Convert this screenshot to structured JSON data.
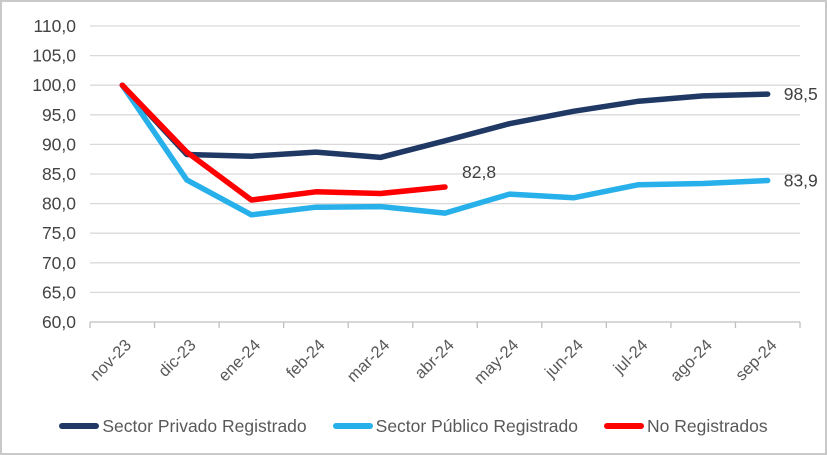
{
  "chart_data": {
    "type": "line",
    "title": "",
    "xlabel": "",
    "ylabel": "",
    "categories": [
      "nov-23",
      "dic-23",
      "ene-24",
      "feb-24",
      "mar-24",
      "abr-24",
      "may-24",
      "jun-24",
      "jul-24",
      "ago-24",
      "sep-24"
    ],
    "series": [
      {
        "name": "Sector Privado Registrado",
        "color": "#1f3864",
        "values": [
          100.0,
          88.3,
          88.0,
          88.7,
          87.8,
          90.6,
          93.5,
          95.6,
          97.3,
          98.2,
          98.5
        ],
        "end_label": "98,5",
        "end_label_pos": "right"
      },
      {
        "name": "Sector Público Registrado",
        "color": "#27b0ea",
        "values": [
          100.0,
          84.0,
          78.1,
          79.4,
          79.5,
          78.4,
          81.6,
          81.0,
          83.2,
          83.4,
          83.9
        ],
        "end_label": "83,9",
        "end_label_pos": "right"
      },
      {
        "name": "No Registrados",
        "color": "#ff0000",
        "values": [
          100.0,
          88.7,
          80.6,
          82.0,
          81.7,
          82.8
        ],
        "end_label": "82,8",
        "end_label_pos": "above"
      }
    ],
    "ylim": [
      60,
      110
    ],
    "yticks": [
      60,
      65,
      70,
      75,
      80,
      85,
      90,
      95,
      100,
      105,
      110
    ],
    "ytick_labels": [
      "60,0",
      "65,0",
      "70,0",
      "75,0",
      "80,0",
      "85,0",
      "90,0",
      "95,0",
      "100,0",
      "105,0",
      "110,0"
    ],
    "grid": true,
    "legend_position": "bottom",
    "colors": {
      "gridline": "#d9d9d9",
      "axis_line": "#bfbfbf",
      "ytick_text": "#444444",
      "xtick_text": "#595959",
      "data_label_text": "#404040"
    }
  }
}
